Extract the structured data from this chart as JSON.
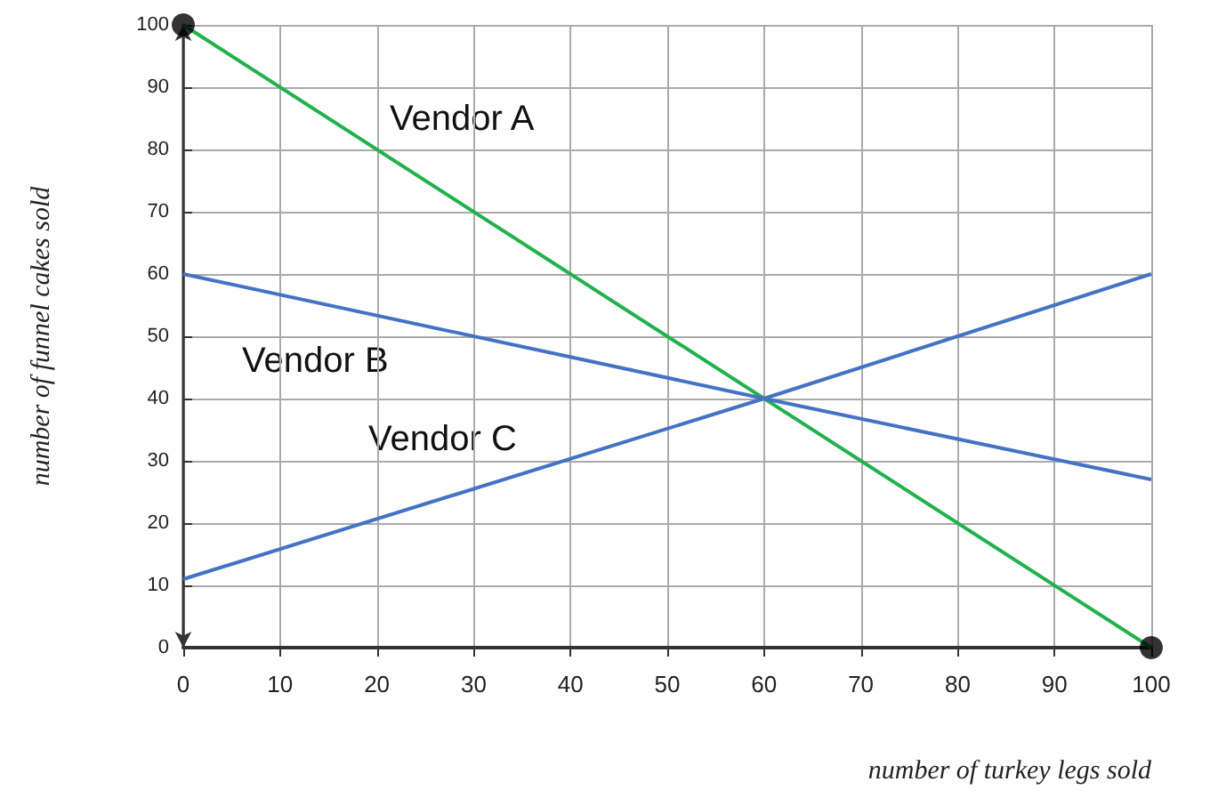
{
  "chart_data": {
    "type": "line",
    "xlabel": "number of turkey legs sold",
    "ylabel": "number of funnel cakes sold",
    "xlim": [
      0,
      100
    ],
    "ylim": [
      0,
      100
    ],
    "xticks": [
      0,
      10,
      20,
      30,
      40,
      50,
      60,
      70,
      80,
      90,
      100
    ],
    "yticks": [
      0,
      10,
      20,
      30,
      40,
      50,
      60,
      70,
      80,
      90,
      100
    ],
    "grid": true,
    "series": [
      {
        "color": "#22b14c",
        "x": [
          0,
          100
        ],
        "values": [
          100,
          0
        ]
      },
      {
        "color": "#4472c4",
        "x": [
          0,
          60,
          100
        ],
        "values": [
          60,
          40,
          27
        ]
      },
      {
        "color": "#4472c4",
        "x": [
          0,
          60,
          100
        ],
        "values": [
          11,
          40,
          60
        ]
      },
      {
        "type": "scatter",
        "color": "#000000",
        "x": [
          0,
          100
        ],
        "values": [
          100,
          0
        ]
      }
    ],
    "annotations": [
      "Vendor A",
      "Vendor B",
      "Vendor C"
    ]
  }
}
